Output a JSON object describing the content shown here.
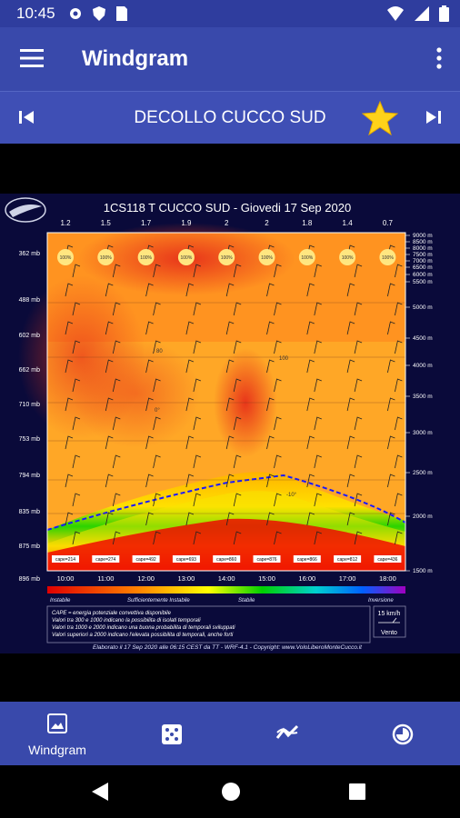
{
  "status": {
    "time": "10:45",
    "left_icons": [
      "gear-icon",
      "shield-icon",
      "sim-icon"
    ],
    "right_icons": [
      "wifi-icon",
      "signal-icon",
      "battery-icon"
    ]
  },
  "appbar": {
    "title": "Windgram"
  },
  "location": {
    "name": "DECOLLO CUCCO SUD"
  },
  "colors": {
    "statusbar": "#2f3d9e",
    "appbar": "#3949ab",
    "star": "#ffd21a"
  },
  "chart_data": {
    "type": "heatmap",
    "title": "1CS118 T CUCCO SUD - Giovedi 17 Sep 2020",
    "top_values": [
      "1.2",
      "1.5",
      "1.7",
      "1.9",
      "2",
      "2",
      "1.8",
      "1.4",
      "0.7"
    ],
    "pressure_labels": [
      "362 mb",
      "488 mb",
      "602 mb",
      "662 mb",
      "710 mb",
      "753 mb",
      "794 mb",
      "835 mb",
      "875 mb",
      "896 mb"
    ],
    "altitude_labels": [
      "9000 m",
      "8500 m",
      "8000 m",
      "7500 m",
      "7000 m",
      "6500 m",
      "6000 m",
      "5500 m",
      "5000 m",
      "4500 m",
      "4000 m",
      "3500 m",
      "3000 m",
      "2500 m",
      "2000 m",
      "1500 m"
    ],
    "x_labels": [
      "10:00",
      "11:00",
      "12:00",
      "13:00",
      "14:00",
      "15:00",
      "16:00",
      "17:00",
      "18:00"
    ],
    "cape_labels": [
      "cape=214",
      "cape=274",
      "cape=492",
      "cape=693",
      "cape=860",
      "cape=876",
      "cape=866",
      "cape=812",
      "cape=436"
    ],
    "percent_labels": [
      "100%",
      "100%",
      "100%",
      "100%",
      "100%",
      "100%",
      "100%",
      "100%",
      "100%"
    ],
    "inline_labels": [
      "80",
      "0°",
      "-10°",
      "100"
    ],
    "scale_labels": [
      "Instabile",
      "Sufficientemente Instabile",
      "Stabile",
      "Inversione"
    ],
    "legend_lines": [
      "CAPE = energia potenziale convettiva disponibile",
      "Valori tra 300 e 1000 indicano la possibilita di isolati temporali",
      "Valori tra 1000 e 2000 indicano una buona probabilita di temporali sviluppati",
      "Valori superiori a 2000 indicano l'elevata possibilita di temporali, anche forti"
    ],
    "wind_box": {
      "speed": "15 km/h",
      "label": "Vento"
    },
    "footer": "Elaborato il 17 Sep 2020 alle 06:15 CEST da TT - WRF-4.1 - Copyright: www.VoloLiberoMonteCucco.it"
  },
  "bottom_nav": [
    {
      "label": "Windgram",
      "icon": "image-icon",
      "active": true
    },
    {
      "label": "",
      "icon": "dice-icon"
    },
    {
      "label": "",
      "icon": "trend-icon"
    },
    {
      "label": "",
      "icon": "timer-icon"
    }
  ]
}
